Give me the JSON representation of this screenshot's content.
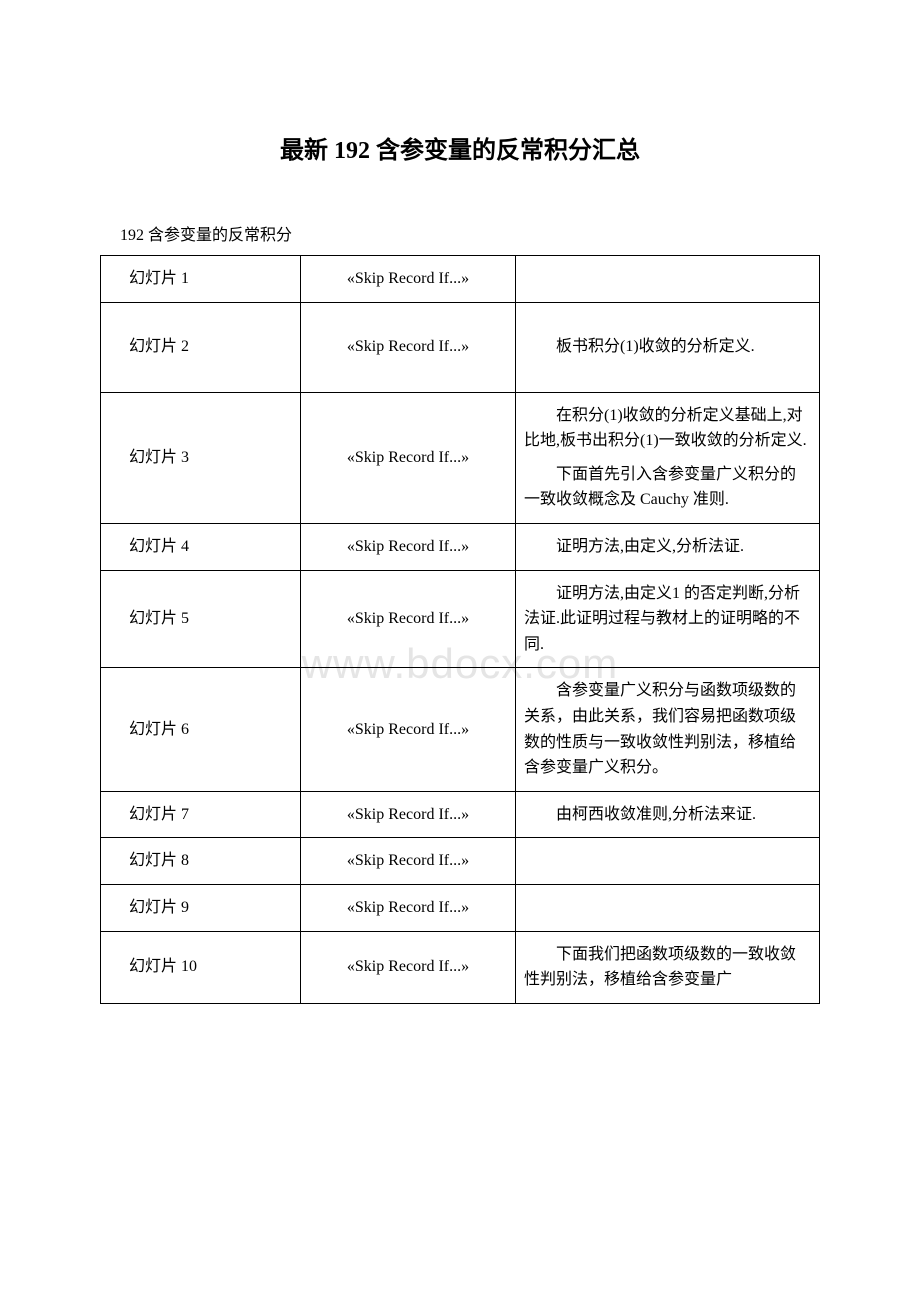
{
  "title": "最新 192 含参变量的反常积分汇总",
  "subtitle": "192 含参变量的反常积分",
  "watermark": "www.bdocx.com",
  "skip": "«Skip Record If...»",
  "table": {
    "rows": [
      {
        "label": "幻灯片 1",
        "note": ""
      },
      {
        "label": "幻灯片 2",
        "note": "板书积分(1)收敛的分析定义."
      },
      {
        "label": "幻灯片 3",
        "note_a": "在积分(1)收敛的分析定义基础上,对比地,板书出积分(1)一致收敛的分析定义.",
        "note_b": "下面首先引入含参变量广义积分的一致收敛概念及 Cauchy 准则."
      },
      {
        "label": "幻灯片 4",
        "note": "证明方法,由定义,分析法证."
      },
      {
        "label": "幻灯片 5",
        "note": "证明方法,由定义1 的否定判断,分析法证.此证明过程与教材上的证明略的不同."
      },
      {
        "label": "幻灯片 6",
        "note": "含参变量广义积分与函数项级数的关系，由此关系，我们容易把函数项级数的性质与一致收敛性判别法，移植给含参变量广义积分。"
      },
      {
        "label": "幻灯片 7",
        "note": "由柯西收敛准则,分析法来证."
      },
      {
        "label": "幻灯片 8",
        "note": ""
      },
      {
        "label": "幻灯片 9",
        "note": ""
      },
      {
        "label": "幻灯片 10",
        "note": "下面我们把函数项级数的一致收敛性判别法，移植给含参变量广"
      }
    ]
  }
}
